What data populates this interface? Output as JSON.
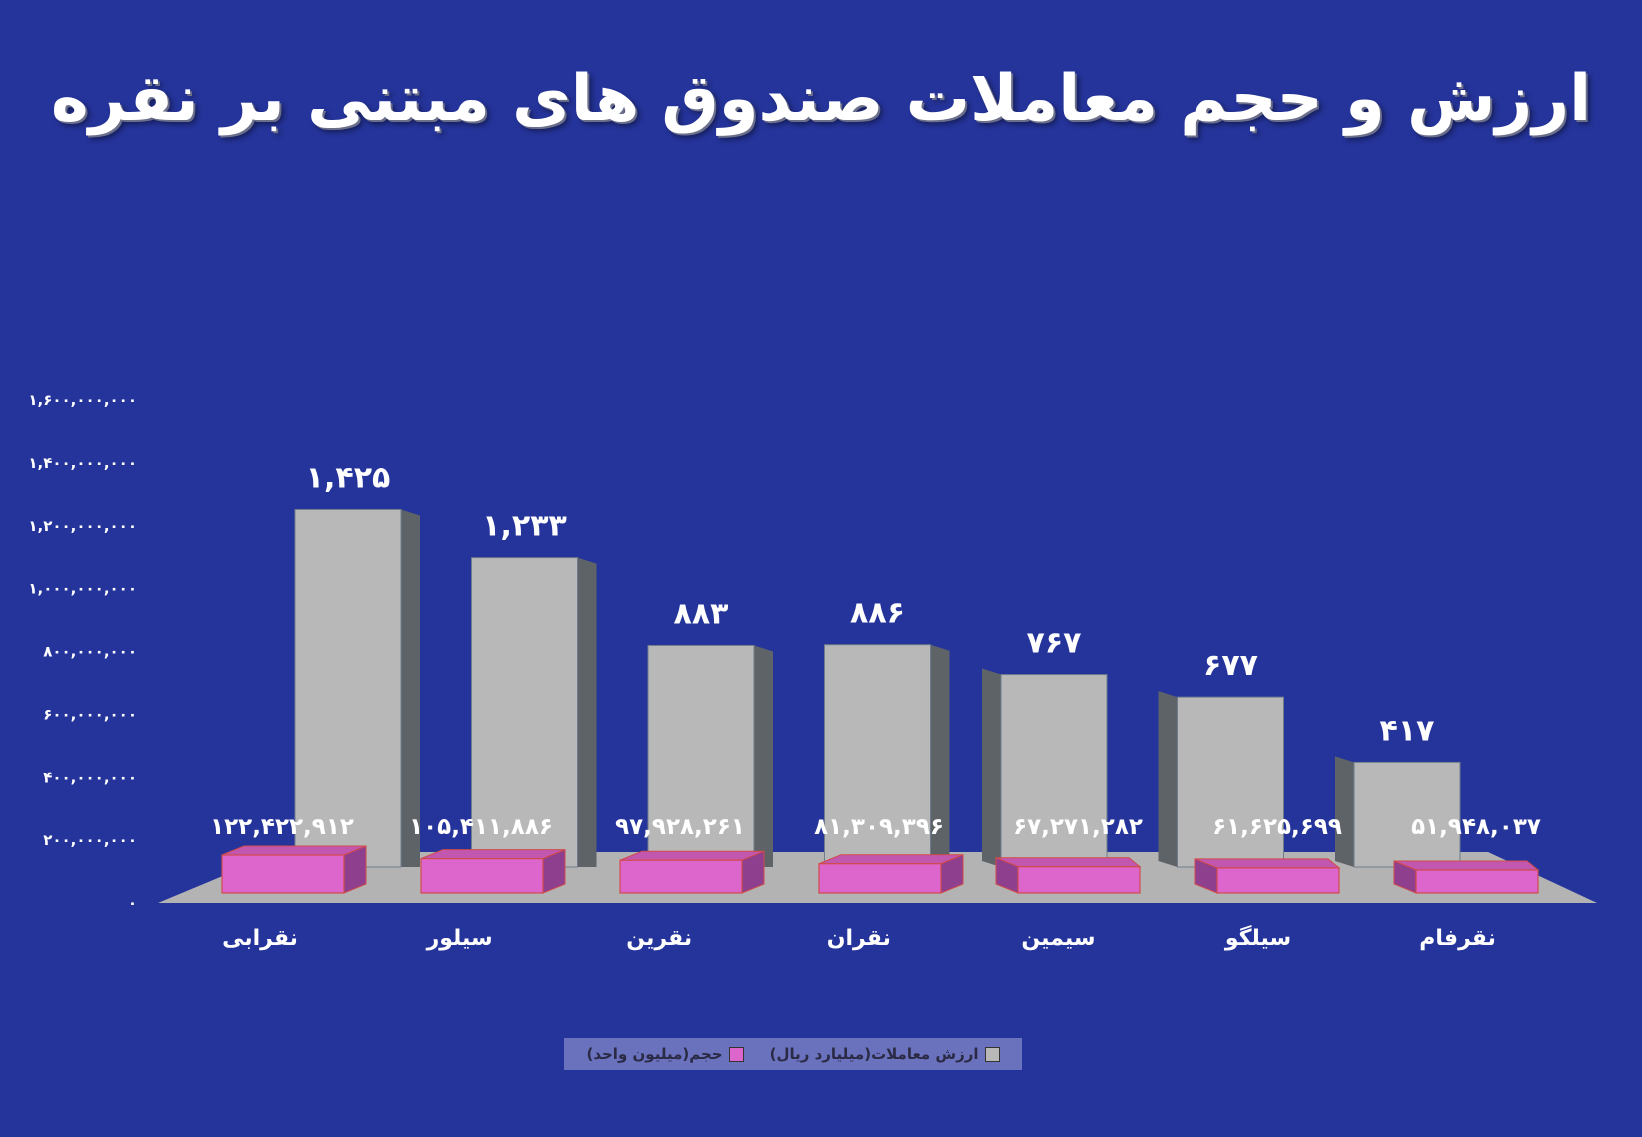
{
  "chart_data": {
    "type": "bar",
    "title": "ارزش و حجم معاملات صندوق های مبتنی بر نقره",
    "categories": [
      "نقرابی",
      "سیلور",
      "نقرین",
      "نقران",
      "سیمین",
      "سیلگو",
      "نقرفام"
    ],
    "series": [
      {
        "name": "ارزش معاملات(میلیارد ریال)",
        "values": [
          1425,
          1233,
          883,
          886,
          767,
          677,
          417
        ],
        "labels": [
          "۱,۴۲۵",
          "۱,۲۳۳",
          "۸۸۳",
          "۸۸۶",
          "۷۶۷",
          "۶۷۷",
          "۴۱۷"
        ],
        "color": "#b8b8b8"
      },
      {
        "name": "حجم(میلیون واحد)",
        "values": [
          122422912,
          105411886,
          97928261,
          81309396,
          67271282,
          61625699,
          51948037
        ],
        "labels": [
          "۱۲۲,۴۲۲,۹۱۲",
          "۱۰۵,۴۱۱,۸۸۶",
          "۹۷,۹۲۸,۲۶۱",
          "۸۱,۳۰۹,۳۹۶",
          "۶۷,۲۷۱,۲۸۲",
          "۶۱,۶۲۵,۶۹۹",
          "۵۱,۹۴۸,۰۳۷"
        ],
        "color": "#dd66cc"
      }
    ],
    "yticks": [
      "۰",
      "۲۰۰,۰۰۰,۰۰۰",
      "۴۰۰,۰۰۰,۰۰۰",
      "۶۰۰,۰۰۰,۰۰۰",
      "۸۰۰,۰۰۰,۰۰۰",
      "۱,۰۰۰,۰۰۰,۰۰۰",
      "۱,۲۰۰,۰۰۰,۰۰۰",
      "۱,۴۰۰,۰۰۰,۰۰۰",
      "۱,۶۰۰,۰۰۰,۰۰۰"
    ],
    "ylim": [
      0,
      1600000000
    ],
    "legend_position": "bottom",
    "colors": {
      "background": "#25349b",
      "floor": "#b3b3b3",
      "value_bar_front": "#b8b8b8",
      "value_bar_side": "#5e6368",
      "volume_bar_front": "#dd66cc",
      "volume_bar_side": "#8e3f8e",
      "legend_bg": "#6a71bd"
    }
  }
}
